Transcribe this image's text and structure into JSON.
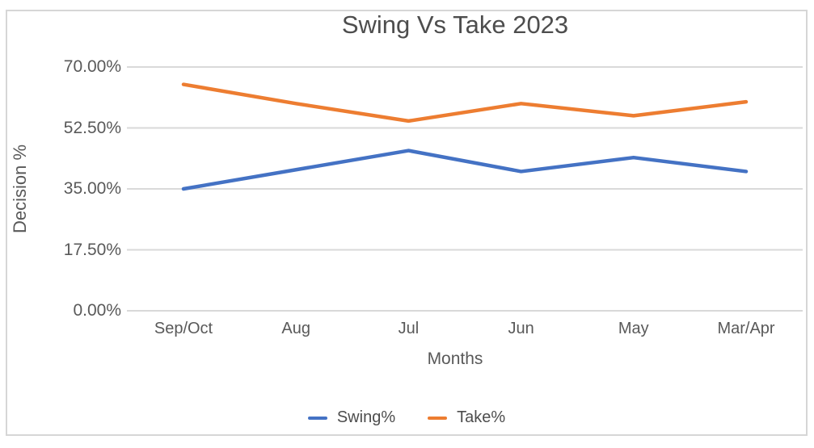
{
  "chart_data": {
    "type": "line",
    "title": "Swing Vs Take 2023",
    "xlabel": "Months",
    "ylabel": "Decision %",
    "categories": [
      "Sep/Oct",
      "Aug",
      "Jul",
      "Jun",
      "May",
      "Mar/Apr"
    ],
    "series": [
      {
        "name": "Swing%",
        "color": "#4472C4",
        "values": [
          35,
          40.5,
          46,
          40,
          44,
          40
        ]
      },
      {
        "name": "Take%",
        "color": "#ED7D31",
        "values": [
          65,
          59.5,
          54.5,
          59.5,
          56,
          60
        ]
      }
    ],
    "ylim": [
      0,
      70
    ],
    "ytick_labels_top_down": [
      "70.00%",
      "52.50%",
      "35.00%",
      "17.50%",
      "0.00%"
    ],
    "grid": true,
    "gridline_color": "#d9d9d9",
    "frame_border_color": "#d6d6d6",
    "text_color": "#595959",
    "legend_position": "bottom"
  }
}
